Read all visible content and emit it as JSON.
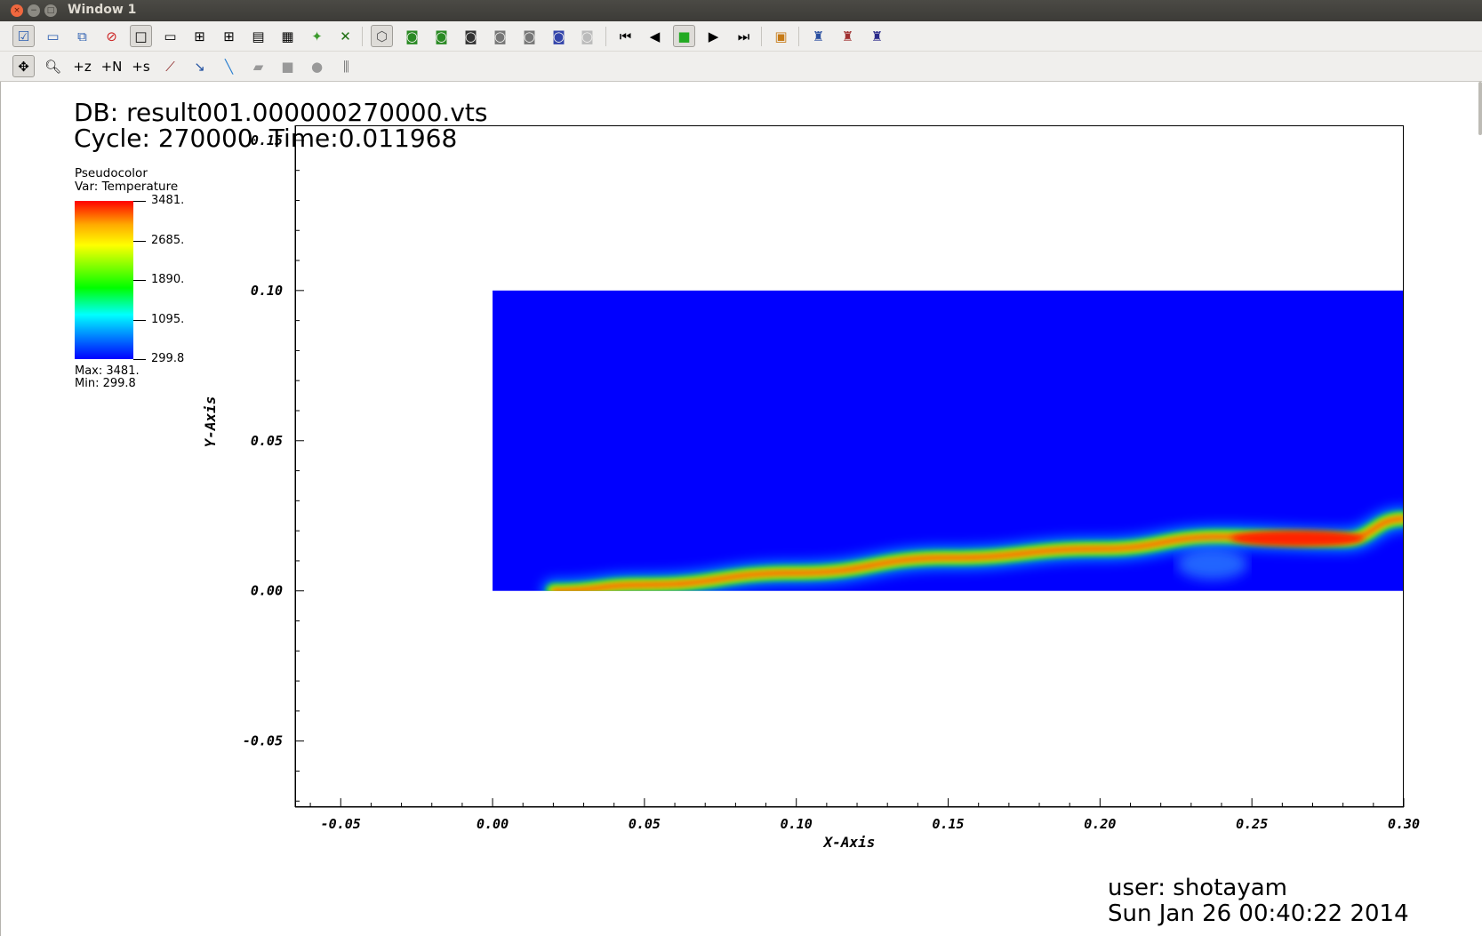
{
  "window": {
    "title": "Window 1"
  },
  "toolbar_row1": [
    {
      "icon": "active-window-check-icon",
      "pressed": true,
      "glyph": "☑",
      "color": "#2a5db0"
    },
    {
      "icon": "new-window-icon",
      "glyph": "▭",
      "color": "#2a5db0"
    },
    {
      "icon": "clone-window-icon",
      "glyph": "⧉",
      "color": "#2a5db0"
    },
    {
      "icon": "delete-window-icon",
      "glyph": "⊘",
      "color": "#cc2222"
    },
    {
      "icon": "layout-1x1-icon",
      "pressed": true,
      "glyph": "□",
      "color": "#000000"
    },
    {
      "icon": "layout-1x2-icon",
      "glyph": "▭",
      "color": "#000000"
    },
    {
      "icon": "layout-2x2-icon",
      "glyph": "⊞",
      "color": "#000000"
    },
    {
      "icon": "layout-2x3-icon",
      "glyph": "⊞",
      "color": "#000000"
    },
    {
      "icon": "layout-3x2-icon",
      "glyph": "▤",
      "color": "#000000"
    },
    {
      "icon": "layout-3x3-icon",
      "glyph": "▦",
      "color": "#000000"
    },
    {
      "icon": "draw-plots-icon",
      "glyph": "✦",
      "color": "#3c9a2c"
    },
    {
      "icon": "clear-plots-icon",
      "glyph": "✕",
      "color": "#1f6f12"
    },
    {
      "icon": "perspective-icon",
      "pressed": true,
      "glyph": "⬡",
      "color": "#555555"
    },
    {
      "icon": "camera-icon-1",
      "glyph": "◙",
      "color": "#2a8a24"
    },
    {
      "icon": "camera-icon-2",
      "glyph": "◙",
      "color": "#2a8a24"
    },
    {
      "icon": "camera-icon-3",
      "glyph": "◙",
      "color": "#333333"
    },
    {
      "icon": "camera-icon-4",
      "glyph": "◙",
      "color": "#777777"
    },
    {
      "icon": "camera-icon-5",
      "glyph": "◙",
      "color": "#777777"
    },
    {
      "icon": "camera-icon-6",
      "glyph": "◙",
      "color": "#3344aa"
    },
    {
      "icon": "camera-icon-7",
      "glyph": "◙",
      "color": "#bbbbbb"
    },
    {
      "icon": "first-frame-icon",
      "glyph": "⏮",
      "color": "#000000"
    },
    {
      "icon": "step-back-icon",
      "glyph": "◀",
      "color": "#000000"
    },
    {
      "icon": "stop-icon",
      "pressed": true,
      "glyph": "■",
      "color": "#22aa22"
    },
    {
      "icon": "play-icon",
      "glyph": "▶",
      "color": "#000000"
    },
    {
      "icon": "last-frame-icon",
      "glyph": "⏭",
      "color": "#000000"
    },
    {
      "icon": "lock-view-icon",
      "glyph": "▣",
      "color": "#c67a16"
    },
    {
      "icon": "lock-time-icon",
      "glyph": "♜",
      "color": "#2a4fa0"
    },
    {
      "icon": "lock-tools-icon",
      "glyph": "♜",
      "color": "#a03030"
    },
    {
      "icon": "lock-all-icon",
      "glyph": "♜",
      "color": "#2a2a8a"
    }
  ],
  "toolbar_row2": [
    {
      "icon": "navigate-mode-icon",
      "pressed": true,
      "glyph": "✥",
      "color": "#000000"
    },
    {
      "icon": "zoom-mode-icon",
      "glyph": "🔍︎",
      "color": "#000000"
    },
    {
      "icon": "zone-pick-icon",
      "glyph": "+z",
      "color": "#000000"
    },
    {
      "icon": "node-pick-icon",
      "glyph": "+N",
      "color": "#000000"
    },
    {
      "icon": "spreadsheet-pick-icon",
      "glyph": "+s",
      "color": "#000000"
    },
    {
      "icon": "curve-pick-icon",
      "glyph": "⟋",
      "color": "#8a2222"
    },
    {
      "icon": "lineout-icon",
      "glyph": "↘",
      "color": "#1f4fa0"
    },
    {
      "icon": "line-tool-icon",
      "glyph": "╲",
      "color": "#2a7fd0"
    },
    {
      "icon": "plane-tool-icon",
      "glyph": "▰",
      "color": "#999999"
    },
    {
      "icon": "box-tool-icon",
      "glyph": "■",
      "color": "#999999"
    },
    {
      "icon": "sphere-tool-icon",
      "glyph": "●",
      "color": "#999999"
    },
    {
      "icon": "axis-restrict-icon",
      "glyph": "⫼",
      "color": "#777777"
    }
  ],
  "annotation": {
    "db_text": "DB: result001.000000270000.vts",
    "cycle_text": "Cycle: 270000",
    "time_text": "Time:0.011968",
    "user_text": "user: shotayam",
    "date_text": "Sun Jan 26 00:40:22 2014"
  },
  "legend": {
    "plot_type": "Pseudocolor",
    "variable": "Var: Temperature",
    "labels": [
      "3481.",
      "2685.",
      "1890.",
      "1095.",
      "299.8"
    ],
    "max_text": "Max:  3481.",
    "min_text": "Min:  299.8"
  },
  "axes": {
    "x_title": "X-Axis",
    "y_title": "Y-Axis",
    "x_range": [
      -0.065,
      0.3
    ],
    "y_range": [
      -0.072,
      0.155
    ],
    "x_ticks": [
      -0.05,
      0.0,
      0.05,
      0.1,
      0.15,
      0.2,
      0.25,
      0.3
    ],
    "x_tick_labels": [
      "-0.05",
      "0.00",
      "0.05",
      "0.10",
      "0.15",
      "0.20",
      "0.25",
      "0.30"
    ],
    "y_ticks": [
      -0.05,
      0.0,
      0.05,
      0.1,
      0.15
    ],
    "y_tick_labels": [
      "-0.05",
      "0.00",
      "0.05",
      "0.10",
      "0.15"
    ]
  },
  "chart_data": {
    "type": "heatmap",
    "variable": "Temperature",
    "domain_x": [
      0.0,
      0.3
    ],
    "domain_y": [
      0.0,
      0.1
    ],
    "color_min": 299.8,
    "color_max": 3481.0,
    "flame_front": [
      {
        "x": 0.02,
        "y": 0.0
      },
      {
        "x": 0.05,
        "y": 0.002
      },
      {
        "x": 0.1,
        "y": 0.006
      },
      {
        "x": 0.15,
        "y": 0.011
      },
      {
        "x": 0.2,
        "y": 0.014
      },
      {
        "x": 0.24,
        "y": 0.018
      },
      {
        "x": 0.28,
        "y": 0.017
      },
      {
        "x": 0.3,
        "y": 0.024
      }
    ]
  }
}
